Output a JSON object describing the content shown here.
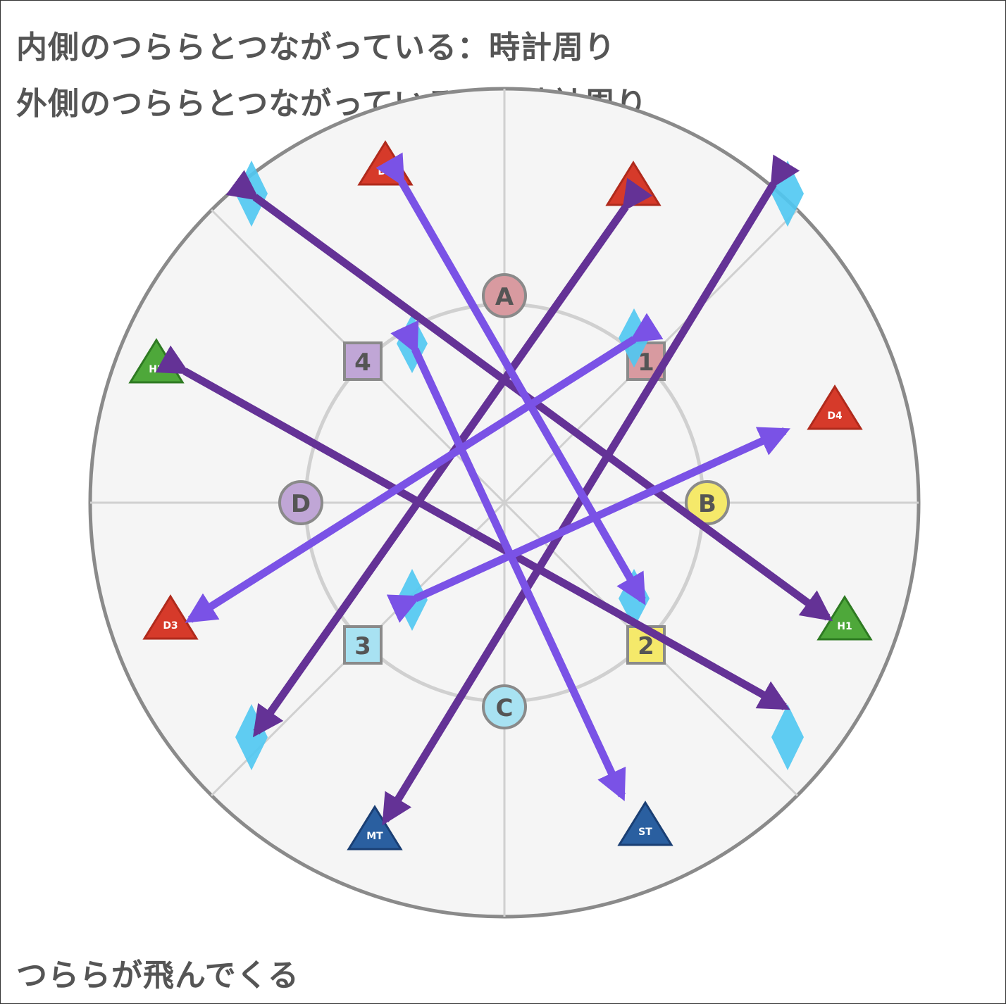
{
  "captions": {
    "inner_rule": "内側のつららとつながっている：時計周り",
    "outer_rule": "外側のつららとつながっている：反時計周り",
    "event": "つららが飛んでくる"
  },
  "colors": {
    "arena_fill": "#f5f5f5",
    "arena_ring": "#8a8a8a",
    "guide_line": "#d0d0d0",
    "dps": "#d63a2a",
    "healer": "#4ea83a",
    "tank": "#2a5fa0",
    "icicle": "#4fc8f2",
    "arrow_dark": "#643296",
    "arrow_light": "#7a52e6",
    "marker_a": "#d89aa0",
    "marker_b": "#f5e96a",
    "marker_c": "#a8e2f2",
    "marker_d": "#c0a6d6",
    "marker_1": "#d89aa0",
    "marker_2": "#f5e96a",
    "marker_3": "#a8e2f2",
    "marker_4": "#c0a6d6"
  },
  "markers": {
    "circles": [
      {
        "label": "A",
        "color": "#d89aa0"
      },
      {
        "label": "B",
        "color": "#f5e96a"
      },
      {
        "label": "C",
        "color": "#a8e2f2"
      },
      {
        "label": "D",
        "color": "#c0a6d6"
      }
    ],
    "squares": [
      {
        "label": "1",
        "color": "#d89aa0"
      },
      {
        "label": "2",
        "color": "#f5e96a"
      },
      {
        "label": "3",
        "color": "#a8e2f2"
      },
      {
        "label": "4",
        "color": "#c0a6d6"
      }
    ]
  },
  "players": [
    {
      "label": "D1",
      "role": "dps"
    },
    {
      "label": "D2",
      "role": "dps"
    },
    {
      "label": "D3",
      "role": "dps"
    },
    {
      "label": "D4",
      "role": "dps"
    },
    {
      "label": "H1",
      "role": "healer"
    },
    {
      "label": "H2",
      "role": "healer"
    },
    {
      "label": "MT",
      "role": "tank"
    },
    {
      "label": "ST",
      "role": "tank"
    }
  ],
  "icicles": {
    "outer": [
      "northwest",
      "northeast",
      "southwest",
      "southeast"
    ],
    "inner": [
      "north-northwest",
      "north-northeast",
      "south-southwest",
      "south-southeast"
    ]
  }
}
